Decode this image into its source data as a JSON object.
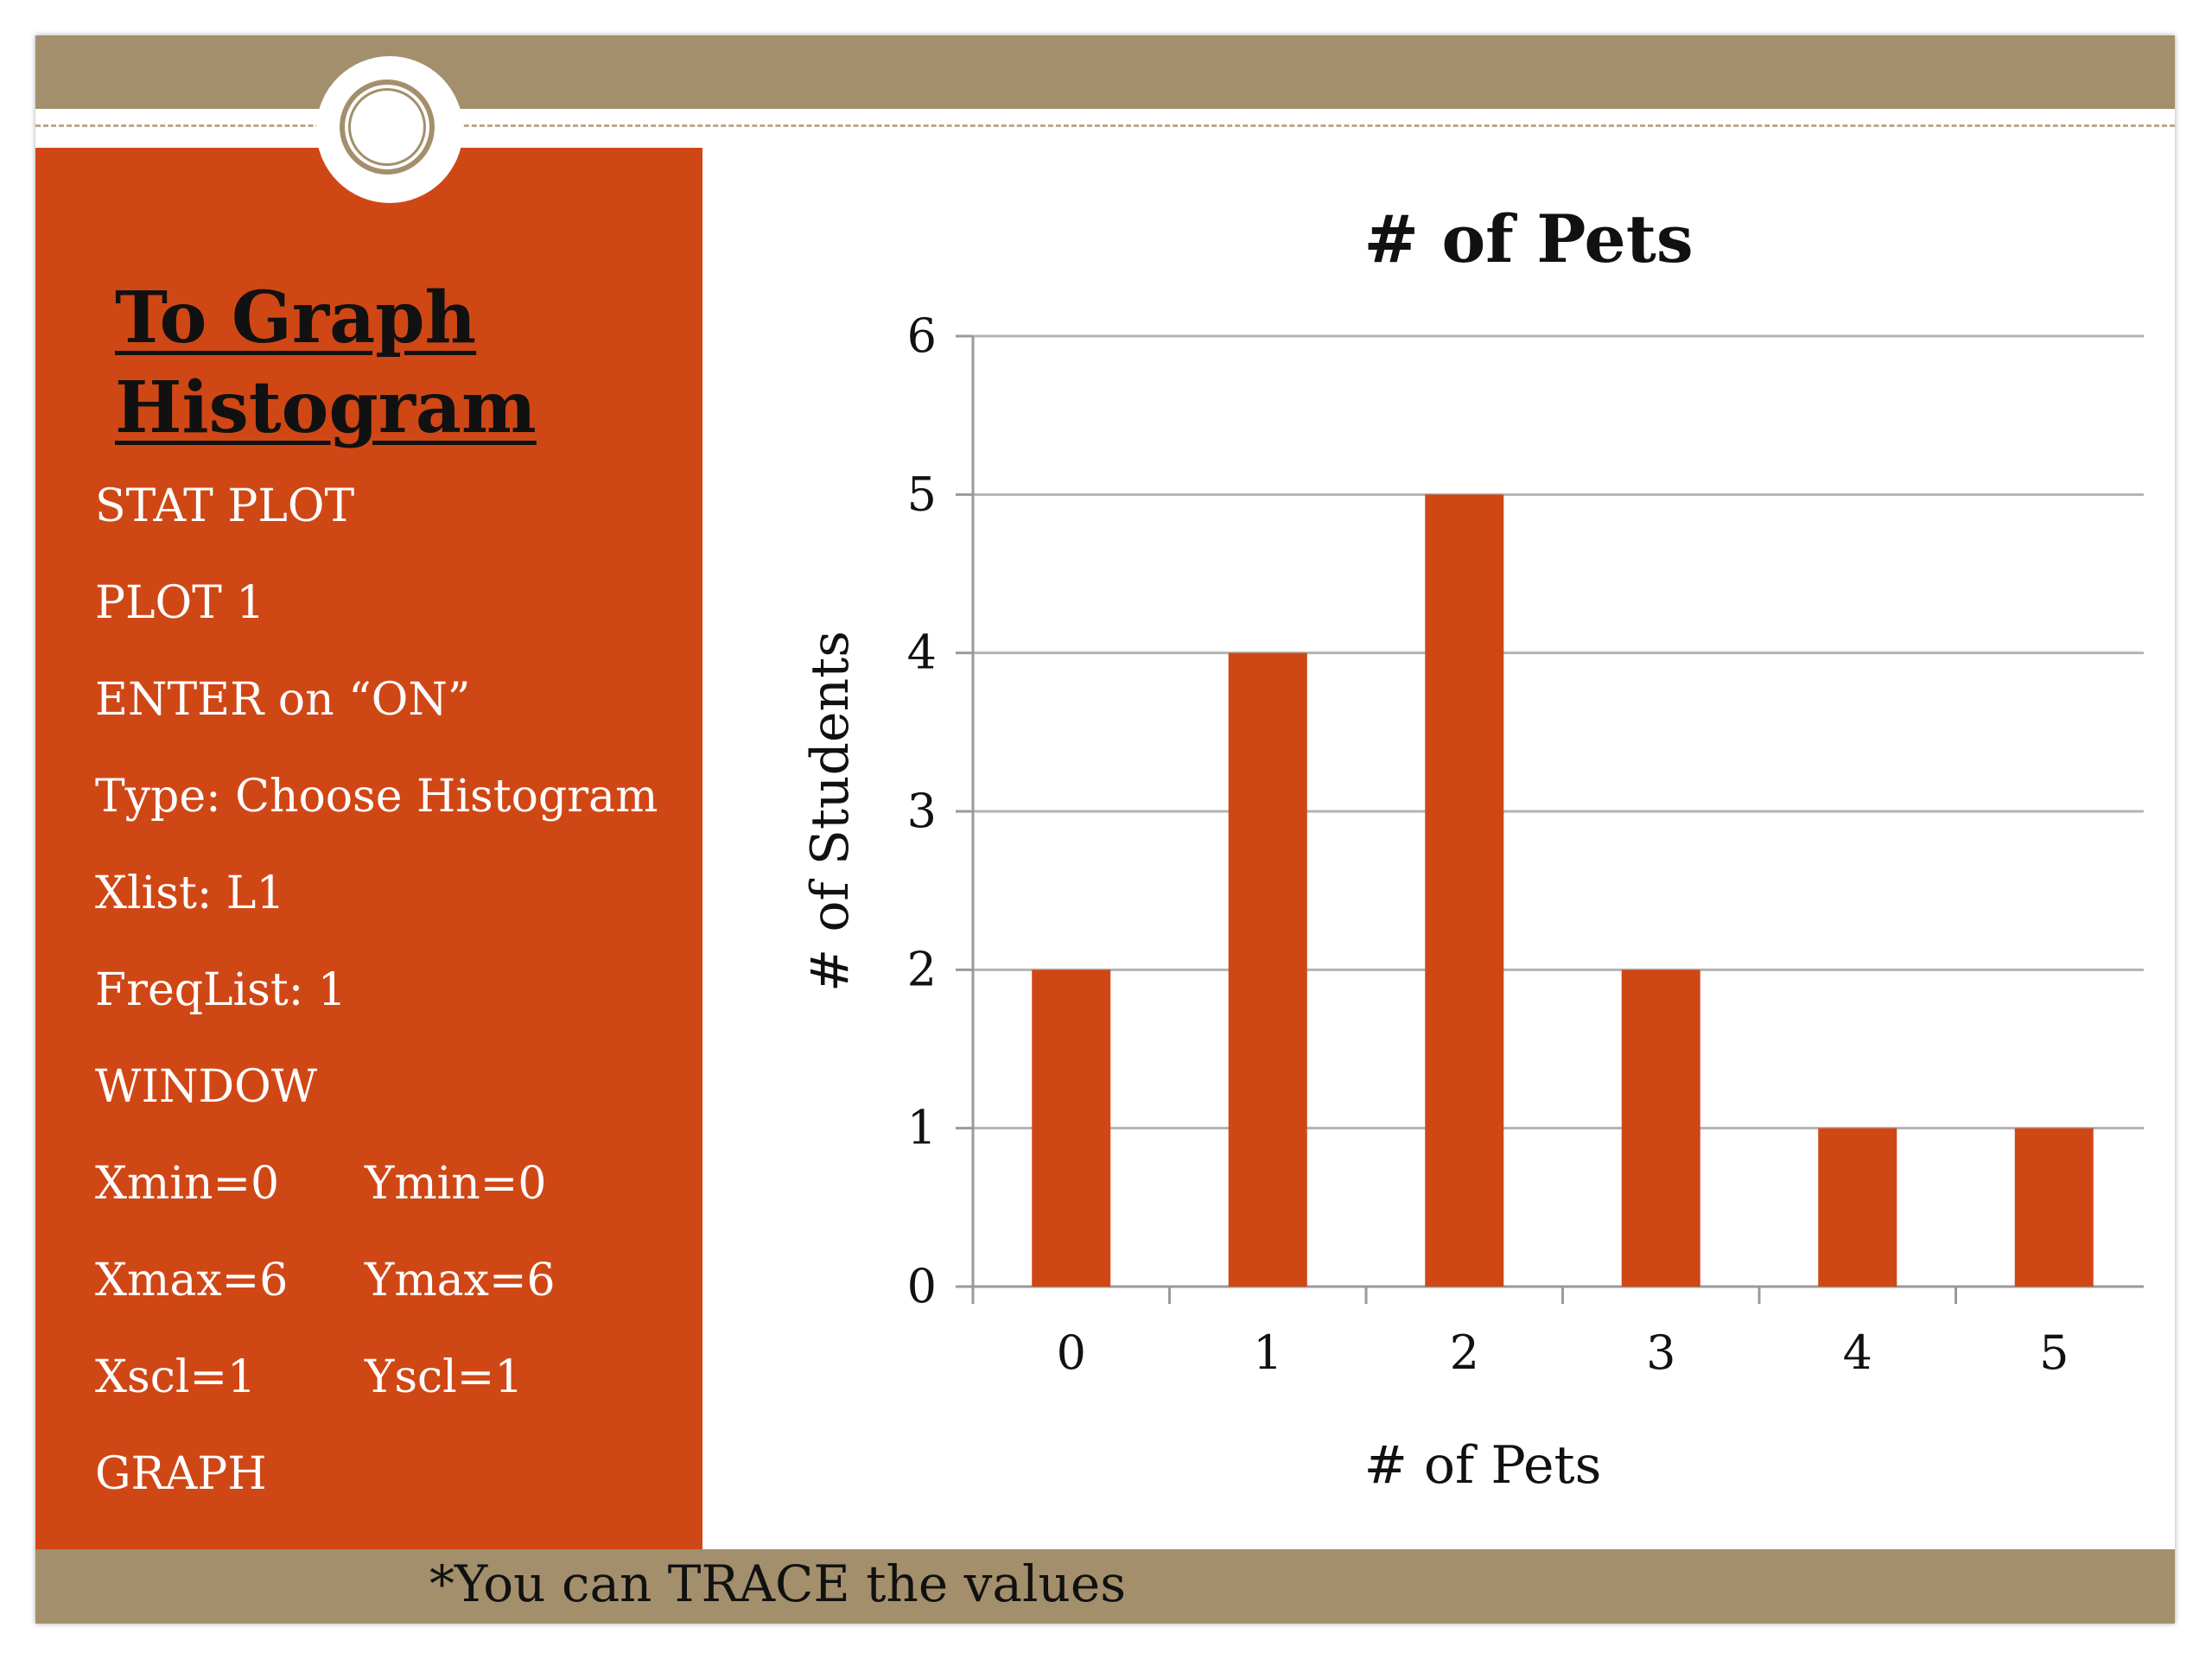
{
  "panel": {
    "title_line1": "To Graph",
    "title_line2": "Histogram",
    "steps": [
      "STAT PLOT",
      "PLOT 1",
      "ENTER on “ON”",
      "Type:  Choose Histogram",
      "Xlist:  L1",
      "FreqList:  1",
      "WINDOW"
    ],
    "window_settings": [
      {
        "left": "Xmin=0",
        "right": "Ymin=0"
      },
      {
        "left": "Xmax=6",
        "right": "Ymax=6"
      },
      {
        "left": "Xscl=1",
        "right": "Yscl=1"
      }
    ],
    "last_step": "GRAPH"
  },
  "footnote": "*You can TRACE the values",
  "colors": {
    "accent": "#d04716",
    "band": "#a38f6b",
    "grid": "#b3b3b3"
  },
  "chart_data": {
    "type": "bar",
    "title": "# of Pets",
    "xlabel": "# of Pets",
    "ylabel": "# of Students",
    "categories": [
      "0",
      "1",
      "2",
      "3",
      "4",
      "5"
    ],
    "values": [
      2,
      4,
      5,
      2,
      1,
      1
    ],
    "ylim": [
      0,
      6
    ],
    "yticks": [
      0,
      1,
      2,
      3,
      4,
      5,
      6
    ],
    "grid": true,
    "legend": "none"
  }
}
